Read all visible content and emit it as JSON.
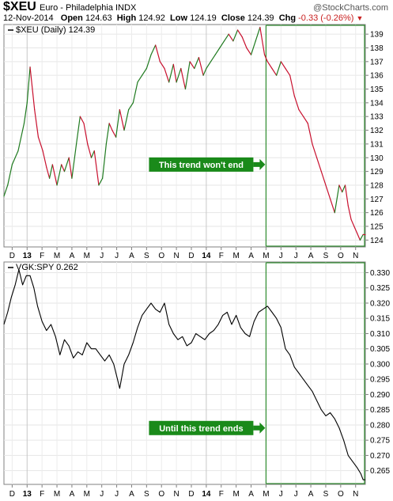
{
  "header": {
    "symbol": "$XEU",
    "name": "Euro - Philadelphia INDX",
    "watermark": "@StockCharts.com",
    "date": "12-Nov-2014",
    "open_label": "Open",
    "open": "124.63",
    "high_label": "High",
    "high": "124.92",
    "low_label": "Low",
    "low": "124.19",
    "close_label": "Close",
    "close": "124.39",
    "chg_label": "Chg",
    "chg": "-0.33 (-0.26%)",
    "chg_icon": "down-triangle-icon"
  },
  "colors": {
    "up": "#1f7a1f",
    "down": "#c8102e",
    "box": "#2e8b2e",
    "annotation_bg": "#1a8a1a",
    "line": "#000000"
  },
  "chart_data": [
    {
      "type": "line",
      "legend": "$XEU (Daily) 124.39",
      "ylim": [
        123.5,
        139.7
      ],
      "yticks": [
        124,
        125,
        126,
        127,
        128,
        129,
        130,
        131,
        132,
        133,
        134,
        135,
        136,
        137,
        138,
        139
      ],
      "x_labels": [
        "D",
        "13",
        "F",
        "M",
        "A",
        "M",
        "J",
        "J",
        "A",
        "S",
        "O",
        "N",
        "D",
        "14",
        "F",
        "M",
        "A",
        "M",
        "J",
        "J",
        "A",
        "S",
        "O",
        "N"
      ],
      "x_label_months": [
        0,
        1,
        2,
        3,
        4,
        5,
        6,
        7,
        8,
        9,
        10,
        11,
        12,
        13,
        14,
        15,
        16,
        17,
        18,
        19,
        20,
        21,
        22,
        23
      ],
      "bold_labels": [
        "13",
        "14"
      ],
      "x_month_range": [
        -0.55,
        23.65
      ],
      "x": [
        -0.55,
        -0.3,
        0,
        0.4,
        0.8,
        1.0,
        1.2,
        1.5,
        1.75,
        2.05,
        2.3,
        2.5,
        2.7,
        3.0,
        3.3,
        3.5,
        3.8,
        4.0,
        4.3,
        4.55,
        4.8,
        5.05,
        5.3,
        5.5,
        5.8,
        6.05,
        6.3,
        6.5,
        6.7,
        6.95,
        7.2,
        7.5,
        7.8,
        8.1,
        8.4,
        8.7,
        9.0,
        9.3,
        9.6,
        9.9,
        10.2,
        10.5,
        10.8,
        11.0,
        11.3,
        11.6,
        11.9,
        12.2,
        12.5,
        12.8,
        13.0,
        13.3,
        13.6,
        13.9,
        14.2,
        14.5,
        14.8,
        15.1,
        15.4,
        15.7,
        16.0,
        16.3,
        16.6,
        16.9,
        17.1,
        17.4,
        17.7,
        18.0,
        18.3,
        18.6,
        18.9,
        19.2,
        19.5,
        19.8,
        20.1,
        20.4,
        20.7,
        21.0,
        21.3,
        21.6,
        21.9,
        22.1,
        22.3,
        22.5,
        22.7,
        22.9,
        23.1,
        23.3,
        23.5,
        23.65
      ],
      "y": [
        127.2,
        128.0,
        129.5,
        130.5,
        132.5,
        134.0,
        136.6,
        133.5,
        131.5,
        130.5,
        129.3,
        128.5,
        129.5,
        128.0,
        129.5,
        129.0,
        130.0,
        128.5,
        131.0,
        133.0,
        132.5,
        131.0,
        130.0,
        130.5,
        128.0,
        128.5,
        131.0,
        132.5,
        132.0,
        131.5,
        133.5,
        132.0,
        133.5,
        134.0,
        135.5,
        136.0,
        136.5,
        137.5,
        138.2,
        137.0,
        136.5,
        135.5,
        136.8,
        135.5,
        136.5,
        135.0,
        137.0,
        136.5,
        137.3,
        136.0,
        136.5,
        137.0,
        137.5,
        138.0,
        138.5,
        139.0,
        138.5,
        139.3,
        138.8,
        138.0,
        137.5,
        138.5,
        139.5,
        137.5,
        137.0,
        136.5,
        136.0,
        137.0,
        136.5,
        136.0,
        134.5,
        133.5,
        133.0,
        132.5,
        131.0,
        130.0,
        129.0,
        128.0,
        127.0,
        126.0,
        128.0,
        127.5,
        128.0,
        126.5,
        125.5,
        125.0,
        124.5,
        124.0,
        124.4,
        124.39
      ]
    },
    {
      "type": "line",
      "legend": "VGK:SPY 0.262",
      "ylim": [
        0.2605,
        0.3335
      ],
      "yticks": [
        "0.265",
        "0.270",
        "0.275",
        "0.280",
        "0.285",
        "0.290",
        "0.295",
        "0.300",
        "0.305",
        "0.310",
        "0.315",
        "0.320",
        "0.325",
        "0.330"
      ],
      "x_labels": [
        "D",
        "13",
        "F",
        "M",
        "A",
        "M",
        "J",
        "J",
        "A",
        "S",
        "O",
        "N",
        "D",
        "14",
        "F",
        "M",
        "A",
        "M",
        "J",
        "J",
        "A",
        "S",
        "O",
        "N"
      ],
      "x_label_months": [
        0,
        1,
        2,
        3,
        4,
        5,
        6,
        7,
        8,
        9,
        10,
        11,
        12,
        13,
        14,
        15,
        16,
        17,
        18,
        19,
        20,
        21,
        22,
        23
      ],
      "bold_labels": [
        "13",
        "14"
      ],
      "x_month_range": [
        -0.55,
        23.65
      ],
      "x": [
        -0.55,
        -0.3,
        -0.05,
        0.2,
        0.45,
        0.7,
        0.95,
        1.2,
        1.45,
        1.7,
        2.0,
        2.3,
        2.6,
        2.9,
        3.2,
        3.5,
        3.8,
        4.1,
        4.4,
        4.7,
        5.0,
        5.3,
        5.6,
        5.9,
        6.2,
        6.5,
        6.8,
        7.0,
        7.2,
        7.5,
        7.8,
        8.1,
        8.4,
        8.7,
        9.0,
        9.3,
        9.6,
        9.9,
        10.2,
        10.5,
        10.8,
        11.1,
        11.4,
        11.7,
        12.0,
        12.3,
        12.6,
        12.9,
        13.2,
        13.5,
        13.8,
        14.1,
        14.4,
        14.7,
        15.0,
        15.3,
        15.6,
        15.9,
        16.2,
        16.5,
        16.8,
        17.1,
        17.4,
        17.7,
        18.0,
        18.3,
        18.6,
        18.9,
        19.2,
        19.5,
        19.8,
        20.1,
        20.4,
        20.7,
        21.0,
        21.3,
        21.6,
        21.9,
        22.2,
        22.5,
        22.8,
        23.1,
        23.35,
        23.5,
        23.65
      ],
      "y": [
        0.313,
        0.317,
        0.322,
        0.326,
        0.331,
        0.326,
        0.329,
        0.329,
        0.325,
        0.319,
        0.314,
        0.311,
        0.313,
        0.309,
        0.303,
        0.308,
        0.306,
        0.302,
        0.304,
        0.303,
        0.307,
        0.305,
        0.305,
        0.303,
        0.301,
        0.303,
        0.3,
        0.296,
        0.292,
        0.3,
        0.303,
        0.307,
        0.312,
        0.316,
        0.318,
        0.32,
        0.318,
        0.317,
        0.32,
        0.313,
        0.31,
        0.308,
        0.309,
        0.306,
        0.307,
        0.31,
        0.309,
        0.308,
        0.31,
        0.311,
        0.313,
        0.316,
        0.317,
        0.313,
        0.316,
        0.312,
        0.31,
        0.309,
        0.314,
        0.317,
        0.318,
        0.319,
        0.317,
        0.315,
        0.312,
        0.305,
        0.303,
        0.299,
        0.297,
        0.295,
        0.293,
        0.291,
        0.288,
        0.285,
        0.283,
        0.284,
        0.282,
        0.279,
        0.275,
        0.27,
        0.268,
        0.266,
        0.264,
        0.262,
        0.262
      ]
    }
  ],
  "annotations": [
    {
      "text": "This trend won't end",
      "x_month": 17.0,
      "y_value": 129.5,
      "panel": 0
    },
    {
      "text": "Until this trend ends",
      "x_month": 17.0,
      "y_value": 0.279,
      "panel": 1
    }
  ],
  "highlight_box_start_month": 17.0
}
